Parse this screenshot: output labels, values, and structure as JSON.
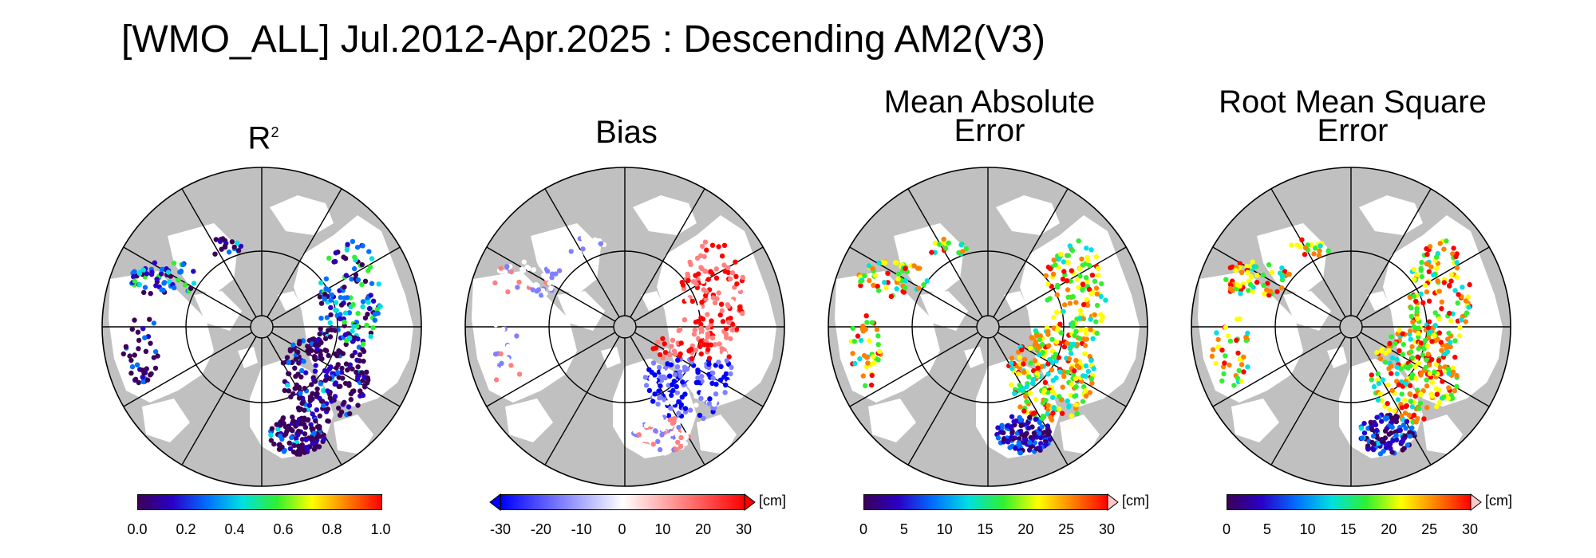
{
  "title": "[WMO_ALL] Jul.2012-Apr.2025 : Descending AM2(V3)",
  "panels": [
    {
      "title_main": "R",
      "title_sup": "2",
      "title_line2": "",
      "colorbar": {
        "ticks": [
          "0.0",
          "0.2",
          "0.4",
          "0.6",
          "0.8",
          "1.0"
        ],
        "unit": "",
        "colormap": "rainbow",
        "colors": [
          "#3b0058",
          "#2a00c8",
          "#0070ff",
          "#00e0e0",
          "#30f030",
          "#ffff00",
          "#ff8000",
          "#ff0000"
        ],
        "arrow_left": false,
        "arrow_right": false
      },
      "dominant": "low"
    },
    {
      "title_main": "Bias",
      "title_sup": "",
      "title_line2": "",
      "colorbar": {
        "ticks": [
          "-30",
          "-20",
          "-10",
          "0",
          "10",
          "20",
          "30"
        ],
        "unit": "[cm]",
        "colormap": "diverging",
        "colors": [
          "#0000ff",
          "#8080ff",
          "#ffffff",
          "#ff8080",
          "#ff0000"
        ],
        "arrow_left": true,
        "arrow_right": true
      },
      "dominant": "mixed"
    },
    {
      "title_main": "Mean Absolute",
      "title_sup": "",
      "title_line2": "Error",
      "colorbar": {
        "ticks": [
          "0",
          "5",
          "10",
          "15",
          "20",
          "25",
          "30"
        ],
        "unit": "[cm]",
        "colormap": "rainbow",
        "colors": [
          "#3b0058",
          "#2a00c8",
          "#0070ff",
          "#00e0e0",
          "#30f030",
          "#ffff00",
          "#ff8000",
          "#ff0000"
        ],
        "arrow_left": false,
        "arrow_right": true
      },
      "dominant": "mid"
    },
    {
      "title_main": "Root Mean Square",
      "title_sup": "",
      "title_line2": "Error",
      "colorbar": {
        "ticks": [
          "0",
          "5",
          "10",
          "15",
          "20",
          "25",
          "30"
        ],
        "unit": "[cm]",
        "colormap": "rainbow",
        "colors": [
          "#3b0058",
          "#2a00c8",
          "#0070ff",
          "#00e0e0",
          "#30f030",
          "#ffff00",
          "#ff8000",
          "#ff0000"
        ],
        "arrow_left": false,
        "arrow_right": true
      },
      "dominant": "mid-high"
    }
  ],
  "map": {
    "projection": "north-polar-stereographic",
    "ocean_color": "#c0c0c0",
    "land_color": "#ffffff",
    "grid_color": "#000000",
    "meridian_count": 12
  }
}
